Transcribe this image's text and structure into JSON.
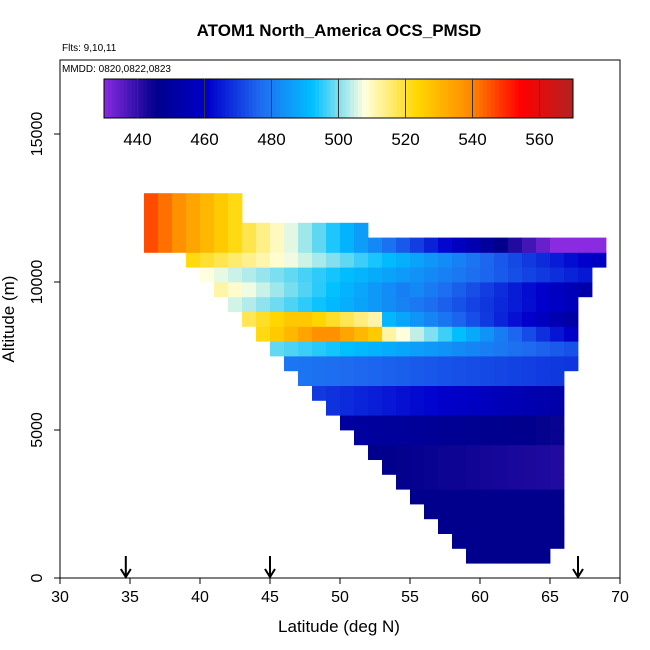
{
  "chart_data": {
    "type": "heatmap",
    "title": "ATOM1 North_America OCS_PMSD",
    "annotations": [
      "Flts: 9,10,11",
      "MMDD: 0820,0822,0823"
    ],
    "xlabel": "Latitude (deg N)",
    "ylabel": "Altitude (m)",
    "xlim": [
      30,
      70
    ],
    "ylim": [
      0,
      17500
    ],
    "x_ticks": [
      30,
      35,
      40,
      45,
      50,
      55,
      60,
      65,
      70
    ],
    "y_ticks": [
      0,
      5000,
      10000,
      15000
    ],
    "colorbar": {
      "range": [
        430,
        570
      ],
      "ticks": [
        440,
        460,
        480,
        500,
        520,
        540,
        560
      ],
      "stops": [
        "#8a2be2",
        "#00008b",
        "#0000cd",
        "#1e6bf0",
        "#00bfff",
        "#ffffe0",
        "#ffd700",
        "#ff8c00",
        "#ff0000",
        "#b22222"
      ]
    },
    "arrows_at_latitude": [
      34.7,
      45.0,
      67.0
    ],
    "grid": false,
    "cell_size": {
      "dlat": 1,
      "dalt": 500
    }
  }
}
